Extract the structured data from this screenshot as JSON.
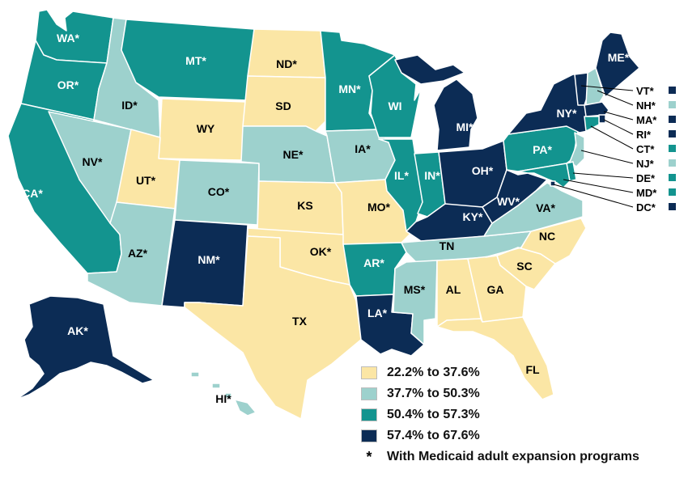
{
  "colors": {
    "c1": "#fbe6a5",
    "c2": "#9dd1cd",
    "c3": "#13948f",
    "c4": "#0c2c55"
  },
  "legend": [
    {
      "label": "22.2% to 37.6%",
      "color": "#fbe6a5"
    },
    {
      "label": "37.7% to 50.3%",
      "color": "#9dd1cd"
    },
    {
      "label": "50.4% to 57.3%",
      "color": "#13948f"
    },
    {
      "label": "57.4% to 67.6%",
      "color": "#0c2c55"
    }
  ],
  "note": {
    "symbol": "*",
    "text": "With Medicaid adult expansion programs"
  },
  "states": [
    {
      "id": "WA",
      "label": "WA*",
      "bin": 3
    },
    {
      "id": "OR",
      "label": "OR*",
      "bin": 3
    },
    {
      "id": "CA",
      "label": "CA*",
      "bin": 3
    },
    {
      "id": "NV",
      "label": "NV*",
      "bin": 2
    },
    {
      "id": "ID",
      "label": "ID*",
      "bin": 2
    },
    {
      "id": "MT",
      "label": "MT*",
      "bin": 3
    },
    {
      "id": "WY",
      "label": "WY",
      "bin": 1
    },
    {
      "id": "UT",
      "label": "UT*",
      "bin": 1
    },
    {
      "id": "AZ",
      "label": "AZ*",
      "bin": 2
    },
    {
      "id": "CO",
      "label": "CO*",
      "bin": 2
    },
    {
      "id": "NM",
      "label": "NM*",
      "bin": 4
    },
    {
      "id": "ND",
      "label": "ND*",
      "bin": 1
    },
    {
      "id": "SD",
      "label": "SD",
      "bin": 1
    },
    {
      "id": "NE",
      "label": "NE*",
      "bin": 2
    },
    {
      "id": "KS",
      "label": "KS",
      "bin": 1
    },
    {
      "id": "OK",
      "label": "OK*",
      "bin": 1
    },
    {
      "id": "TX",
      "label": "TX",
      "bin": 1
    },
    {
      "id": "MN",
      "label": "MN*",
      "bin": 3
    },
    {
      "id": "IA",
      "label": "IA*",
      "bin": 2
    },
    {
      "id": "MO",
      "label": "MO*",
      "bin": 1
    },
    {
      "id": "AR",
      "label": "AR*",
      "bin": 3
    },
    {
      "id": "LA",
      "label": "LA*",
      "bin": 4
    },
    {
      "id": "WI",
      "label": "WI",
      "bin": 3
    },
    {
      "id": "IL",
      "label": "IL*",
      "bin": 3
    },
    {
      "id": "MI",
      "label": "MI*",
      "bin": 4
    },
    {
      "id": "IN",
      "label": "IN*",
      "bin": 3
    },
    {
      "id": "OH",
      "label": "OH*",
      "bin": 4
    },
    {
      "id": "KY",
      "label": "KY*",
      "bin": 4
    },
    {
      "id": "TN",
      "label": "TN",
      "bin": 2
    },
    {
      "id": "MS",
      "label": "MS*",
      "bin": 2
    },
    {
      "id": "AL",
      "label": "AL",
      "bin": 1
    },
    {
      "id": "GA",
      "label": "GA",
      "bin": 1
    },
    {
      "id": "FL",
      "label": "FL",
      "bin": 1
    },
    {
      "id": "SC",
      "label": "SC",
      "bin": 1
    },
    {
      "id": "NC",
      "label": "NC",
      "bin": 1
    },
    {
      "id": "VA",
      "label": "VA*",
      "bin": 2
    },
    {
      "id": "WV",
      "label": "WV*",
      "bin": 4
    },
    {
      "id": "PA",
      "label": "PA*",
      "bin": 3
    },
    {
      "id": "NY",
      "label": "NY*",
      "bin": 4
    },
    {
      "id": "ME",
      "label": "ME*",
      "bin": 4
    },
    {
      "id": "AK",
      "label": "AK*",
      "bin": 4
    },
    {
      "id": "HI",
      "label": "HI*",
      "bin": 2
    }
  ],
  "small_states": [
    {
      "id": "VT",
      "label": "VT*",
      "bin": 4
    },
    {
      "id": "NH",
      "label": "NH*",
      "bin": 2
    },
    {
      "id": "MA",
      "label": "MA*",
      "bin": 4
    },
    {
      "id": "RI",
      "label": "RI*",
      "bin": 4
    },
    {
      "id": "CT",
      "label": "CT*",
      "bin": 3
    },
    {
      "id": "NJ",
      "label": "NJ*",
      "bin": 2
    },
    {
      "id": "DE",
      "label": "DE*",
      "bin": 3
    },
    {
      "id": "MD",
      "label": "MD*",
      "bin": 3
    },
    {
      "id": "DC",
      "label": "DC*",
      "bin": 4
    }
  ]
}
